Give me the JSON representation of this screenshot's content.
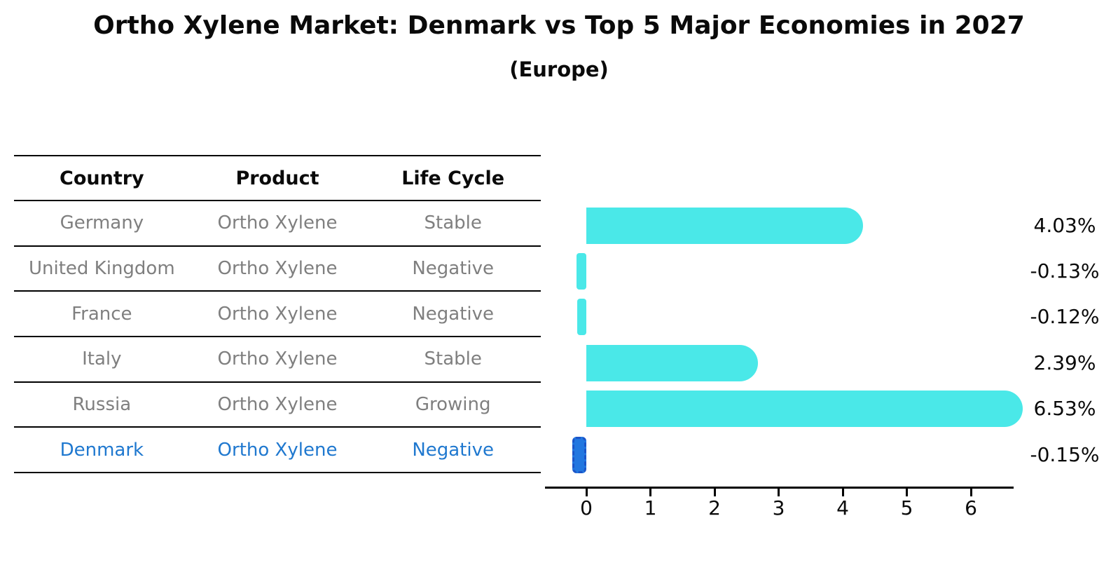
{
  "title": "Ortho Xylene Market: Denmark vs Top 5 Major Economies in 2027",
  "subtitle": "(Europe)",
  "table": {
    "headers": [
      "Country",
      "Product",
      "Life Cycle"
    ],
    "rows": [
      {
        "country": "Germany",
        "product": "Ortho Xylene",
        "life_cycle": "Stable",
        "highlighted": false
      },
      {
        "country": "United Kingdom",
        "product": "Ortho Xylene",
        "life_cycle": "Negative",
        "highlighted": false
      },
      {
        "country": "France",
        "product": "Ortho Xylene",
        "life_cycle": "Negative",
        "highlighted": false
      },
      {
        "country": "Italy",
        "product": "Ortho Xylene",
        "life_cycle": "Stable",
        "highlighted": false
      },
      {
        "country": "Russia",
        "product": "Ortho Xylene",
        "life_cycle": "Growing",
        "highlighted": false
      },
      {
        "country": "Denmark",
        "product": "Ortho Xylene",
        "life_cycle": "Negative",
        "highlighted": true
      }
    ]
  },
  "chart_data": {
    "type": "bar",
    "orientation": "horizontal",
    "title": "Ortho Xylene Market: Denmark vs Top 5 Major Economies in 2027",
    "subtitle": "(Europe)",
    "categories": [
      "Germany",
      "United Kingdom",
      "France",
      "Italy",
      "Russia",
      "Denmark"
    ],
    "values": [
      4.03,
      -0.13,
      -0.12,
      2.39,
      6.53,
      -0.15
    ],
    "value_labels": [
      "4.03%",
      "-0.13%",
      "-0.12%",
      "2.39%",
      "6.53%",
      "-0.15%"
    ],
    "x_ticks": [
      "0",
      "1",
      "2",
      "3",
      "4",
      "5",
      "6"
    ],
    "xlim": [
      -0.65,
      6.67
    ],
    "grid": false,
    "legend": null,
    "bar_color": "#4AE8E8",
    "highlight_bar_color": "#2277E0",
    "highlight_bar_border": "#1b55c8",
    "highlight_index": 5
  },
  "colors": {
    "background": "#ffffff",
    "text_primary": "#0a0a0a",
    "text_muted": "#7f7f7f",
    "highlight_text": "#1f78cf",
    "bar": "#4AE8E8",
    "highlight_bar": "#2277E0"
  }
}
